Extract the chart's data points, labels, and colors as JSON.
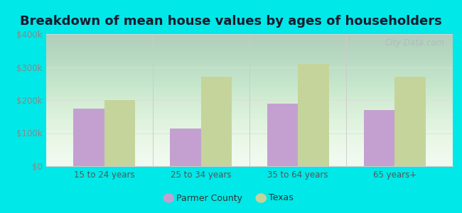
{
  "title": "Breakdown of mean house values by ages of householders",
  "categories": [
    "15 to 24 years",
    "25 to 34 years",
    "35 to 64 years",
    "65 years+"
  ],
  "parmer_county": [
    175000,
    115000,
    190000,
    170000
  ],
  "texas": [
    200000,
    270000,
    310000,
    270000
  ],
  "parmer_color": "#c4a0d0",
  "texas_color": "#c5d49a",
  "ylim": [
    0,
    400000
  ],
  "yticks": [
    0,
    100000,
    200000,
    300000,
    400000
  ],
  "ytick_labels": [
    "$0",
    "$100k",
    "$200k",
    "$300k",
    "$400k"
  ],
  "background_color": "#00e8e8",
  "bar_width": 0.32,
  "legend_labels": [
    "Parmer County",
    "Texas"
  ],
  "watermark": "City-Data.com",
  "title_fontsize": 13,
  "tick_fontsize": 8.5,
  "legend_fontsize": 9
}
